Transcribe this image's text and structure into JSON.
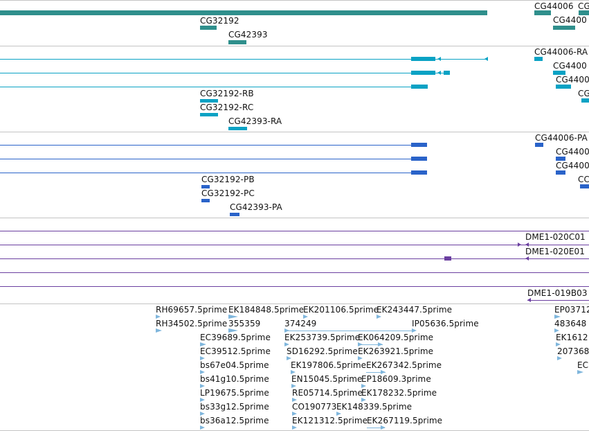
{
  "colors": {
    "gene": "#2f8f8c",
    "transcript": "#0aa2c4",
    "protein": "#2a63c9",
    "clone": "#6b3fa0",
    "est": "#7fb6dc",
    "divider": "#c4c4c4"
  },
  "gene_track": {
    "labels": [
      "CG32192",
      "CG42393",
      "CG44006",
      "CG",
      "CG4400"
    ]
  },
  "transcript_track": {
    "labels": [
      "CG44006-RA",
      "CG4400",
      "CG4400",
      "CG",
      "CG32192-RB",
      "CG32192-RC",
      "CG42393-RA"
    ]
  },
  "protein_track": {
    "labels": [
      "CG44006-PA",
      "CG4400",
      "CG4400",
      "CC",
      "CG32192-PB",
      "CG32192-PC",
      "CG42393-PA"
    ]
  },
  "clone_track": {
    "labels": [
      "DME1-020C01",
      "DME1-020E01",
      "DME1-019B03"
    ]
  },
  "est_track": {
    "labels": [
      "RH69657.5prime",
      "EK184848.5prime",
      "EK201106.5prime",
      "EK243447.5prime",
      "EP03712",
      "RH34502.5prime",
      "355359",
      "374249",
      "IP05636.5prime",
      "483648",
      "EC39689.5prime",
      "EK253739.5prime",
      "EK064209.5prime",
      "EK1612",
      "EC39512.5prime",
      "SD16292.5prime",
      "EK263921.5prime",
      "207368",
      "bs67e04.5prime",
      "EK197806.5prime",
      "EK267342.5prime",
      "EC",
      "bs41g10.5prime",
      "EN15045.5prime",
      "EP18609.3prime",
      "LP19675.5prime",
      "RE05714.5prime",
      "EK178232.5prime",
      "bs33g12.5prime",
      "CO190773",
      "EK148339.5prime",
      "bs36a12.5prime",
      "EK121312.5prime",
      "EK267119.5prime"
    ]
  }
}
